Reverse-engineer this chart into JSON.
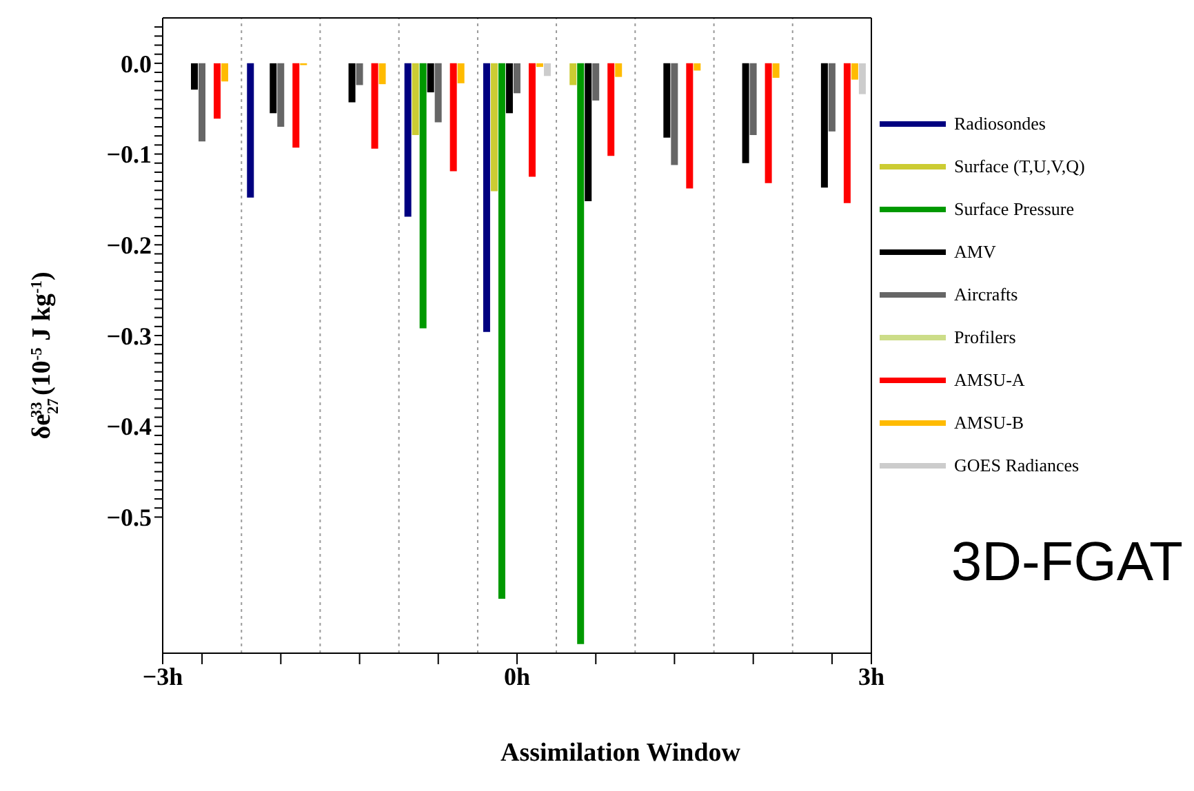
{
  "chart_data": {
    "type": "bar",
    "xlabel": "Assimilation Window",
    "ylabel": "δe$_{27}$$^{33}$ (10$^{-5}$ J kg$^{-1}$)",
    "annotations": [
      "3D-FGAT"
    ],
    "x": [
      -2.667,
      -2,
      -1.333,
      -0.667,
      0,
      0.667,
      1.333,
      2,
      2.667
    ],
    "xlim": [
      -3,
      3
    ],
    "xticks": [
      {
        "value": -3,
        "label": "−3h"
      },
      {
        "value": -2.667,
        "label": null
      },
      {
        "value": -2,
        "label": null
      },
      {
        "value": -1.333,
        "label": null
      },
      {
        "value": -0.667,
        "label": null
      },
      {
        "value": 0,
        "label": "0h"
      },
      {
        "value": 0.667,
        "label": null
      },
      {
        "value": 1.333,
        "label": null
      },
      {
        "value": 2,
        "label": null
      },
      {
        "value": 2.667,
        "label": null
      },
      {
        "value": 3,
        "label": "3h"
      }
    ],
    "ylim": [
      -0.65,
      0.05
    ],
    "yticks": [
      {
        "value": 0.04,
        "label": null
      },
      {
        "value": 0.03,
        "label": null
      },
      {
        "value": 0.02,
        "label": null
      },
      {
        "value": 0.01,
        "label": null
      },
      {
        "value": 0,
        "label": "0.0"
      },
      {
        "value": -0.01,
        "label": null
      },
      {
        "value": -0.02,
        "label": null
      },
      {
        "value": -0.03,
        "label": null
      },
      {
        "value": -0.04,
        "label": null
      },
      {
        "value": -0.05,
        "label": null
      },
      {
        "value": -0.06,
        "label": null
      },
      {
        "value": -0.07,
        "label": null
      },
      {
        "value": -0.08,
        "label": null
      },
      {
        "value": -0.09,
        "label": null
      },
      {
        "value": -0.1,
        "label": "−0.1"
      },
      {
        "value": -0.11,
        "label": null
      },
      {
        "value": -0.12,
        "label": null
      },
      {
        "value": -0.13,
        "label": null
      },
      {
        "value": -0.14,
        "label": null
      },
      {
        "value": -0.15,
        "label": null
      },
      {
        "value": -0.16,
        "label": null
      },
      {
        "value": -0.17,
        "label": null
      },
      {
        "value": -0.18,
        "label": null
      },
      {
        "value": -0.19,
        "label": null
      },
      {
        "value": -0.2,
        "label": "−0.2"
      },
      {
        "value": -0.21,
        "label": null
      },
      {
        "value": -0.22,
        "label": null
      },
      {
        "value": -0.23,
        "label": null
      },
      {
        "value": -0.24,
        "label": null
      },
      {
        "value": -0.25,
        "label": null
      },
      {
        "value": -0.26,
        "label": null
      },
      {
        "value": -0.27,
        "label": null
      },
      {
        "value": -0.28,
        "label": null
      },
      {
        "value": -0.29,
        "label": null
      },
      {
        "value": -0.3,
        "label": "−0.3"
      },
      {
        "value": -0.31,
        "label": null
      },
      {
        "value": -0.32,
        "label": null
      },
      {
        "value": -0.33,
        "label": null
      },
      {
        "value": -0.34,
        "label": null
      },
      {
        "value": -0.35,
        "label": null
      },
      {
        "value": -0.36,
        "label": null
      },
      {
        "value": -0.37,
        "label": null
      },
      {
        "value": -0.38,
        "label": null
      },
      {
        "value": -0.39,
        "label": null
      },
      {
        "value": -0.4,
        "label": "−0.4"
      },
      {
        "value": -0.41,
        "label": null
      },
      {
        "value": -0.42,
        "label": null
      },
      {
        "value": -0.43,
        "label": null
      },
      {
        "value": -0.44,
        "label": null
      },
      {
        "value": -0.45,
        "label": null
      },
      {
        "value": -0.46,
        "label": null
      },
      {
        "value": -0.47,
        "label": null
      },
      {
        "value": -0.48,
        "label": null
      },
      {
        "value": -0.49,
        "label": null
      },
      {
        "value": -0.5,
        "label": "−0.5"
      }
    ],
    "ref_lines": [
      {
        "axis": "x",
        "value": -2.333,
        "label": null,
        "color": "#999999",
        "line_style": "dotted"
      },
      {
        "axis": "x",
        "value": -1.667,
        "label": null,
        "color": "#999999",
        "line_style": "dotted"
      },
      {
        "axis": "x",
        "value": -1,
        "label": null,
        "color": "#999999",
        "line_style": "dotted"
      },
      {
        "axis": "x",
        "value": -0.333,
        "label": null,
        "color": "#999999",
        "line_style": "dotted"
      },
      {
        "axis": "x",
        "value": 0.333,
        "label": null,
        "color": "#999999",
        "line_style": "dotted"
      },
      {
        "axis": "x",
        "value": 1,
        "label": null,
        "color": "#999999",
        "line_style": "dotted"
      },
      {
        "axis": "x",
        "value": 1.667,
        "label": null,
        "color": "#999999",
        "line_style": "dotted"
      },
      {
        "axis": "x",
        "value": 2.333,
        "label": null,
        "color": "#999999",
        "line_style": "dotted"
      }
    ],
    "legend": "right",
    "series": [
      {
        "name": "Radiosondes",
        "color": "#000080",
        "values": [
          0,
          -0.148,
          0,
          -0.169,
          -0.296,
          0,
          0,
          0,
          0
        ]
      },
      {
        "name": "Surface (T,U,V,Q)",
        "color": "#cccc33",
        "values": [
          0,
          0,
          0,
          -0.079,
          -0.141,
          -0.024,
          0,
          0,
          0
        ]
      },
      {
        "name": "Surface Pressure",
        "color": "#009900",
        "values": [
          0,
          0,
          0,
          -0.292,
          -0.59,
          -0.64,
          0,
          0,
          0
        ]
      },
      {
        "name": "AMV",
        "color": "#000000",
        "values": [
          -0.029,
          -0.055,
          -0.043,
          -0.032,
          -0.055,
          -0.152,
          -0.082,
          -0.11,
          -0.137
        ]
      },
      {
        "name": "Aircrafts",
        "color": "#666666",
        "values": [
          -0.086,
          -0.07,
          -0.024,
          -0.065,
          -0.033,
          -0.041,
          -0.112,
          -0.079,
          -0.075
        ]
      },
      {
        "name": "Profilers",
        "color": "#ccdd88",
        "values": [
          0,
          0,
          0,
          0,
          0,
          0,
          0,
          0,
          0
        ]
      },
      {
        "name": "AMSU-A",
        "color": "#ff0000",
        "values": [
          -0.061,
          -0.093,
          -0.094,
          -0.119,
          -0.125,
          -0.102,
          -0.138,
          -0.132,
          -0.154
        ]
      },
      {
        "name": "AMSU-B",
        "color": "#ffbb00",
        "values": [
          -0.02,
          -0.002,
          -0.023,
          -0.022,
          -0.004,
          -0.015,
          -0.008,
          -0.016,
          -0.018
        ]
      },
      {
        "name": "GOES Radiances",
        "color": "#cccccc",
        "values": [
          0,
          0,
          0,
          0,
          -0.014,
          0,
          0,
          0,
          -0.034
        ]
      }
    ]
  }
}
